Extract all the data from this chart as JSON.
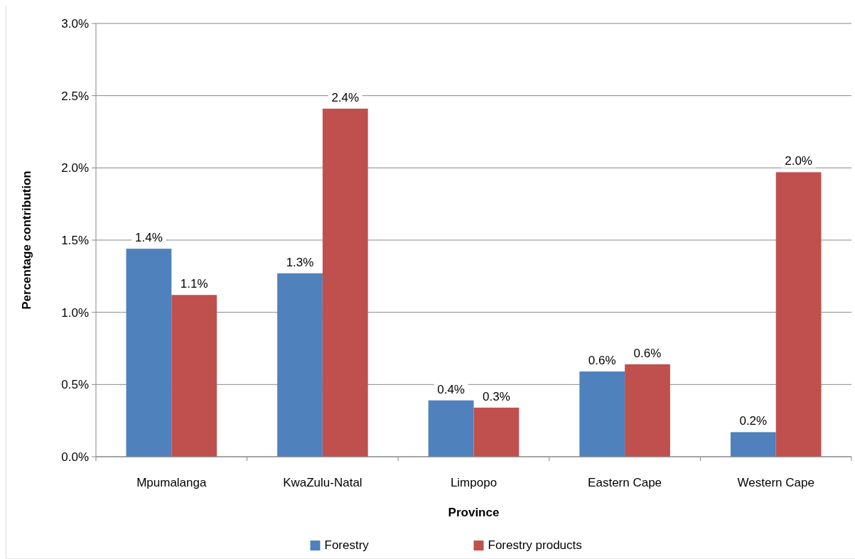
{
  "chart_data": {
    "type": "bar",
    "xlabel": "Province",
    "ylabel": "Percentage contribution",
    "categories": [
      "Mpumalanga",
      "KwaZulu-Natal",
      "Limpopo",
      "Eastern Cape",
      "Western Cape"
    ],
    "series": [
      {
        "name": "Forestry",
        "color": "#4f81bd",
        "values": [
          1.44,
          1.27,
          0.39,
          0.59,
          0.17
        ],
        "value_labels": [
          "1.4%",
          "1.3%",
          "0.4%",
          "0.6%",
          "0.2%"
        ]
      },
      {
        "name": "Forestry products",
        "color": "#c0504d",
        "values": [
          1.12,
          2.41,
          0.34,
          0.64,
          1.97
        ],
        "value_labels": [
          "1.1%",
          "2.4%",
          "0.3%",
          "0.6%",
          "2.0%"
        ]
      }
    ],
    "ylim": [
      0,
      3
    ],
    "yticks": [
      {
        "value": 0,
        "label": "0.0%"
      },
      {
        "value": 0.5,
        "label": "0.5%"
      },
      {
        "value": 1,
        "label": "1.0%"
      },
      {
        "value": 1.5,
        "label": "1.5%"
      },
      {
        "value": 2,
        "label": "2.0%"
      },
      {
        "value": 2.5,
        "label": "2.5%"
      },
      {
        "value": 3,
        "label": "3.0%"
      }
    ],
    "grid": "y",
    "legend": "bottom"
  }
}
